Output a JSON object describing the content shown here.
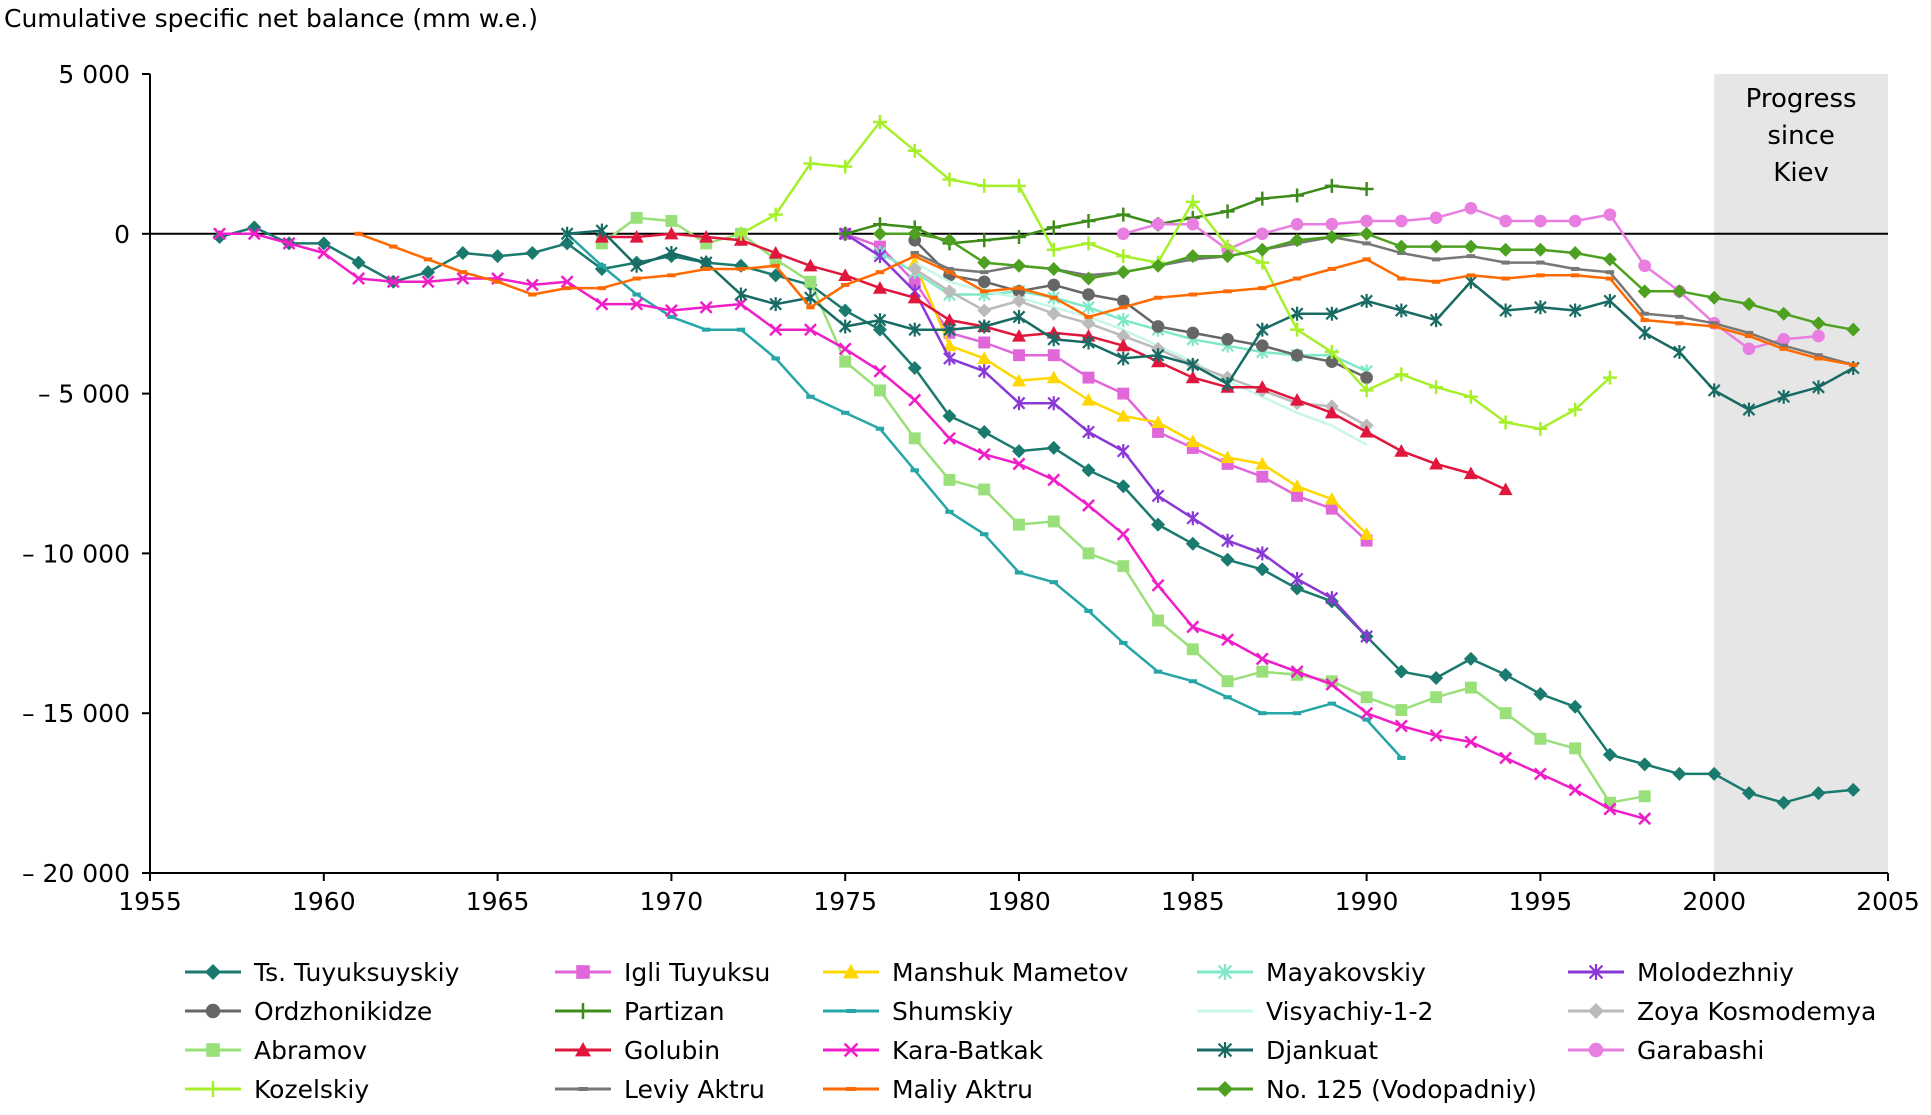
{
  "chart_data": {
    "type": "line",
    "title": "Cumulative specific net balance (mm w.e.)",
    "xlabel": "",
    "ylabel": "Cumulative specific net balance (mm w.e.)",
    "xlim": [
      1955,
      2005
    ],
    "ylim": [
      -20000,
      5000
    ],
    "x_ticks": [
      1955,
      1960,
      1965,
      1970,
      1975,
      1980,
      1985,
      1990,
      1995,
      2000,
      2005
    ],
    "x_tick_labels": [
      "1955",
      "1960",
      "1965",
      "1970",
      "1975",
      "1980",
      "1985",
      "1990",
      "1995",
      "2000",
      "2005"
    ],
    "y_ticks": [
      5000,
      0,
      -5000,
      -10000,
      -15000,
      -20000
    ],
    "y_tick_labels": [
      "5 000",
      "0",
      "– 5 000",
      "– 10 000",
      "– 15 000",
      "– 20 000"
    ],
    "grid": false,
    "legend_position": "bottom",
    "shaded_region": {
      "x": [
        2000,
        2005
      ],
      "color": "#e6e6e6",
      "label": "Progress since Kiev",
      "label_lines": [
        "Progress",
        "since",
        "Kiev"
      ]
    },
    "series": [
      {
        "name": "Ts. Tuyuksuyskiy",
        "color": "#1a7a6e",
        "marker": "diamond",
        "x": [
          1957,
          1958,
          1959,
          1960,
          1961,
          1962,
          1963,
          1964,
          1965,
          1966,
          1967,
          1968,
          1969,
          1970,
          1971,
          1972,
          1973,
          1974,
          1975,
          1976,
          1977,
          1978,
          1979,
          1980,
          1981,
          1982,
          1983,
          1984,
          1985,
          1986,
          1987,
          1988,
          1989,
          1990,
          1991,
          1992,
          1993,
          1994,
          1995,
          1996,
          1997,
          1998,
          1999,
          2000,
          2001,
          2002,
          2003,
          2004
        ],
        "y": [
          -100,
          200,
          -300,
          -300,
          -900,
          -1500,
          -1200,
          -600,
          -700,
          -600,
          -300,
          -1100,
          -900,
          -700,
          -900,
          -1000,
          -1300,
          -1600,
          -2400,
          -3000,
          -4200,
          -5700,
          -6200,
          -6800,
          -6700,
          -7400,
          -7900,
          -9100,
          -9700,
          -10200,
          -10500,
          -11100,
          -11500,
          -12600,
          -13700,
          -13900,
          -13300,
          -13800,
          -14400,
          -14800,
          -16300,
          -16600,
          -16900,
          -16900,
          -17500,
          -17800,
          -17500,
          -17400
        ]
      },
      {
        "name": "Igli Tuyuksu",
        "color": "#e066d9",
        "marker": "square",
        "x": [
          1975,
          1976,
          1977,
          1978,
          1979,
          1980,
          1981,
          1982,
          1983,
          1984,
          1985,
          1986,
          1987,
          1988,
          1989,
          1990
        ],
        "y": [
          0,
          -400,
          -1500,
          -3100,
          -3400,
          -3800,
          -3800,
          -4500,
          -5000,
          -6200,
          -6700,
          -7200,
          -7600,
          -8200,
          -8600,
          -9600
        ]
      },
      {
        "name": "Manshuk Mametov",
        "color": "#ffd700",
        "marker": "triangle",
        "x": [
          1977,
          1978,
          1979,
          1980,
          1981,
          1982,
          1983,
          1984,
          1985,
          1986,
          1987,
          1988,
          1989,
          1990
        ],
        "y": [
          -900,
          -3500,
          -3900,
          -4600,
          -4500,
          -5200,
          -5700,
          -5900,
          -6500,
          -7000,
          -7200,
          -7900,
          -8300,
          -9400
        ]
      },
      {
        "name": "Mayakovskiy",
        "color": "#7fe8c8",
        "marker": "star",
        "x": [
          1976,
          1977,
          1978,
          1979,
          1980,
          1981,
          1982,
          1983,
          1984,
          1985,
          1986,
          1987,
          1988,
          1989,
          1990
        ],
        "y": [
          -600,
          -1200,
          -1900,
          -1900,
          -1800,
          -2000,
          -2300,
          -2700,
          -3000,
          -3300,
          -3500,
          -3700,
          -3800,
          -3800,
          -4300
        ]
      },
      {
        "name": "Molodezhniy",
        "color": "#8a38d6",
        "marker": "star",
        "x": [
          1975,
          1976,
          1977,
          1978,
          1979,
          1980,
          1981,
          1982,
          1983,
          1984,
          1985,
          1986,
          1987,
          1988,
          1989,
          1990
        ],
        "y": [
          0,
          -700,
          -1800,
          -3900,
          -4300,
          -5300,
          -5300,
          -6200,
          -6800,
          -8200,
          -8900,
          -9600,
          -10000,
          -10800,
          -11400,
          -12600
        ]
      },
      {
        "name": "Ordzhonikidze",
        "color": "#666666",
        "marker": "circle",
        "x": [
          1977,
          1978,
          1979,
          1980,
          1981,
          1982,
          1983,
          1984,
          1985,
          1986,
          1987,
          1988,
          1989,
          1990
        ],
        "y": [
          -200,
          -1300,
          -1500,
          -1800,
          -1600,
          -1900,
          -2100,
          -2900,
          -3100,
          -3300,
          -3500,
          -3800,
          -4000,
          -4500
        ]
      },
      {
        "name": "Partizan",
        "color": "#3d8b1a",
        "marker": "plus",
        "x": [
          1975,
          1976,
          1977,
          1978,
          1979,
          1980,
          1981,
          1982,
          1983,
          1984,
          1985,
          1986,
          1987,
          1988,
          1989,
          1990
        ],
        "y": [
          0,
          300,
          200,
          -300,
          -200,
          -100,
          200,
          400,
          600,
          300,
          500,
          700,
          1100,
          1200,
          1500,
          1400
        ]
      },
      {
        "name": "Shumskiy",
        "color": "#26a6a6",
        "marker": "dash",
        "x": [
          1967,
          1968,
          1969,
          1970,
          1971,
          1972,
          1973,
          1974,
          1975,
          1976,
          1977,
          1978,
          1979,
          1980,
          1981,
          1982,
          1983,
          1984,
          1985,
          1986,
          1987,
          1988,
          1989,
          1990,
          1991
        ],
        "y": [
          0,
          -1000,
          -1900,
          -2600,
          -3000,
          -3000,
          -3900,
          -5100,
          -5600,
          -6100,
          -7400,
          -8700,
          -9400,
          -10600,
          -10900,
          -11800,
          -12800,
          -13700,
          -14000,
          -14500,
          -15000,
          -15000,
          -14700,
          -15200,
          -16400
        ]
      },
      {
        "name": "Visyachiy-1-2",
        "color": "#c6f7e8",
        "marker": "none",
        "x": [
          1977,
          1978,
          1979,
          1980,
          1981,
          1982,
          1983,
          1984,
          1985,
          1986,
          1987,
          1988,
          1989,
          1990
        ],
        "y": [
          -900,
          -1500,
          -1800,
          -2000,
          -2300,
          -2600,
          -3000,
          -3500,
          -4000,
          -4600,
          -5100,
          -5600,
          -6000,
          -6600
        ]
      },
      {
        "name": "Zoya Kosmodemya",
        "color": "#bbbbbb",
        "marker": "diamond",
        "x": [
          1977,
          1978,
          1979,
          1980,
          1981,
          1982,
          1983,
          1984,
          1985,
          1986,
          1987,
          1988,
          1989,
          1990
        ],
        "y": [
          -1100,
          -1800,
          -2400,
          -2100,
          -2500,
          -2800,
          -3200,
          -3600,
          -4100,
          -4500,
          -4900,
          -5300,
          -5400,
          -6000
        ]
      },
      {
        "name": "Abramov",
        "color": "#99e07a",
        "marker": "square",
        "x": [
          1968,
          1969,
          1970,
          1971,
          1972,
          1973,
          1974,
          1975,
          1976,
          1977,
          1978,
          1979,
          1980,
          1981,
          1982,
          1983,
          1984,
          1985,
          1986,
          1987,
          1988,
          1989,
          1990,
          1991,
          1992,
          1993,
          1994,
          1995,
          1996,
          1997,
          1998
        ],
        "y": [
          -300,
          500,
          400,
          -300,
          0,
          -800,
          -1500,
          -4000,
          -4900,
          -6400,
          -7700,
          -8000,
          -9100,
          -9000,
          -10000,
          -10400,
          -12100,
          -13000,
          -14000,
          -13700,
          -13800,
          -14000,
          -14500,
          -14900,
          -14500,
          -14200,
          -15000,
          -15800,
          -16100,
          -17800,
          -17600
        ]
      },
      {
        "name": "Golubin",
        "color": "#e0163c",
        "marker": "triangle",
        "x": [
          1968,
          1969,
          1970,
          1971,
          1972,
          1973,
          1974,
          1975,
          1976,
          1977,
          1978,
          1979,
          1980,
          1981,
          1982,
          1983,
          1984,
          1985,
          1986,
          1987,
          1988,
          1989,
          1990,
          1991,
          1992,
          1993,
          1994
        ],
        "y": [
          -100,
          -100,
          0,
          -100,
          -200,
          -600,
          -1000,
          -1300,
          -1700,
          -2000,
          -2700,
          -2900,
          -3200,
          -3100,
          -3200,
          -3500,
          -4000,
          -4500,
          -4800,
          -4800,
          -5200,
          -5600,
          -6200,
          -6800,
          -7200,
          -7500,
          -8000
        ]
      },
      {
        "name": "Kara-Batkak",
        "color": "#f01ec8",
        "marker": "cross",
        "x": [
          1957,
          1958,
          1959,
          1960,
          1961,
          1962,
          1963,
          1964,
          1965,
          1966,
          1967,
          1968,
          1969,
          1970,
          1971,
          1972,
          1973,
          1974,
          1975,
          1976,
          1977,
          1978,
          1979,
          1980,
          1981,
          1982,
          1983,
          1984,
          1985,
          1986,
          1987,
          1988,
          1989,
          1990,
          1991,
          1992,
          1993,
          1994,
          1995,
          1996,
          1997,
          1998
        ],
        "y": [
          0,
          0,
          -300,
          -600,
          -1400,
          -1500,
          -1500,
          -1400,
          -1400,
          -1600,
          -1500,
          -2200,
          -2200,
          -2400,
          -2300,
          -2200,
          -3000,
          -3000,
          -3600,
          -4300,
          -5200,
          -6400,
          -6900,
          -7200,
          -7700,
          -8500,
          -9400,
          -11000,
          -12300,
          -12700,
          -13300,
          -13700,
          -14100,
          -15000,
          -15400,
          -15700,
          -15900,
          -16400,
          -16900,
          -17400,
          -18000,
          -18300
        ]
      },
      {
        "name": "Djankuat",
        "color": "#176b63",
        "marker": "star",
        "x": [
          1967,
          1968,
          1969,
          1970,
          1971,
          1972,
          1973,
          1974,
          1975,
          1976,
          1977,
          1978,
          1979,
          1980,
          1981,
          1982,
          1983,
          1984,
          1985,
          1986,
          1987,
          1988,
          1989,
          1990,
          1991,
          1992,
          1993,
          1994,
          1995,
          1996,
          1997,
          1998,
          1999,
          2000,
          2001,
          2002,
          2003,
          2004
        ],
        "y": [
          0,
          100,
          -1000,
          -600,
          -900,
          -1900,
          -2200,
          -2000,
          -2900,
          -2700,
          -3000,
          -3000,
          -2900,
          -2600,
          -3300,
          -3400,
          -3900,
          -3800,
          -4100,
          -4700,
          -3000,
          -2500,
          -2500,
          -2100,
          -2400,
          -2700,
          -1500,
          -2400,
          -2300,
          -2400,
          -2100,
          -3100,
          -3700,
          -4900,
          -5500,
          -5100,
          -4800,
          -4200
        ]
      },
      {
        "name": "Garabashi",
        "color": "#e87ee0",
        "marker": "circle",
        "x": [
          1983,
          1984,
          1985,
          1986,
          1987,
          1988,
          1989,
          1990,
          1991,
          1992,
          1993,
          1994,
          1995,
          1996,
          1997,
          1998,
          1999,
          2000,
          2001,
          2002,
          2003
        ],
        "y": [
          0,
          300,
          300,
          -500,
          0,
          300,
          300,
          400,
          400,
          500,
          800,
          400,
          400,
          400,
          600,
          -1000,
          -1800,
          -2800,
          -3600,
          -3300,
          -3200
        ]
      },
      {
        "name": "Kozelskiy",
        "color": "#a6f02a",
        "marker": "plus",
        "x": [
          1972,
          1973,
          1974,
          1975,
          1976,
          1977,
          1978,
          1979,
          1980,
          1981,
          1982,
          1983,
          1984,
          1985,
          1986,
          1987,
          1988,
          1989,
          1990,
          1991,
          1992,
          1993,
          1994,
          1995,
          1996,
          1997
        ],
        "y": [
          0,
          600,
          2200,
          2100,
          3500,
          2600,
          1700,
          1500,
          1500,
          -500,
          -300,
          -700,
          -900,
          1000,
          -400,
          -900,
          -3000,
          -3700,
          -4900,
          -4400,
          -4800,
          -5100,
          -5900,
          -6100,
          -5500,
          -4500
        ]
      },
      {
        "name": "Leviy Aktru",
        "color": "#777777",
        "marker": "dash",
        "x": [
          1977,
          1978,
          1979,
          1980,
          1981,
          1982,
          1983,
          1984,
          1985,
          1986,
          1987,
          1988,
          1989,
          1990,
          1991,
          1992,
          1993,
          1994,
          1995,
          1996,
          1997,
          1998,
          1999,
          2000,
          2001,
          2002,
          2003,
          2004
        ],
        "y": [
          -600,
          -1100,
          -1200,
          -1000,
          -1100,
          -1300,
          -1200,
          -1000,
          -800,
          -700,
          -500,
          -300,
          -100,
          -300,
          -600,
          -800,
          -700,
          -900,
          -900,
          -1100,
          -1200,
          -2500,
          -2600,
          -2800,
          -3100,
          -3500,
          -3800,
          -4100
        ]
      },
      {
        "name": "Maliy Aktru",
        "color": "#ff6a00",
        "marker": "dash",
        "x": [
          1961,
          1962,
          1963,
          1964,
          1965,
          1966,
          1967,
          1968,
          1969,
          1970,
          1971,
          1972,
          1973,
          1974,
          1975,
          1976,
          1977,
          1978,
          1979,
          1980,
          1981,
          1982,
          1983,
          1984,
          1985,
          1986,
          1987,
          1988,
          1989,
          1990,
          1991,
          1992,
          1993,
          1994,
          1995,
          1996,
          1997,
          1998,
          1999,
          2000,
          2001,
          2002,
          2003,
          2004
        ],
        "y": [
          0,
          -400,
          -800,
          -1200,
          -1500,
          -1900,
          -1700,
          -1700,
          -1400,
          -1300,
          -1100,
          -1100,
          -1000,
          -2300,
          -1600,
          -1200,
          -700,
          -1200,
          -1800,
          -1700,
          -2000,
          -2600,
          -2300,
          -2000,
          -1900,
          -1800,
          -1700,
          -1400,
          -1100,
          -800,
          -1400,
          -1500,
          -1300,
          -1400,
          -1300,
          -1300,
          -1400,
          -2700,
          -2800,
          -2900,
          -3200,
          -3600,
          -3900,
          -4100
        ]
      },
      {
        "name": "No. 125 (Vodopadniy)",
        "color": "#4ea120",
        "marker": "diamond",
        "x": [
          1976,
          1977,
          1978,
          1979,
          1980,
          1981,
          1982,
          1983,
          1984,
          1985,
          1986,
          1987,
          1988,
          1989,
          1990,
          1991,
          1992,
          1993,
          1994,
          1995,
          1996,
          1997,
          1998,
          1999,
          2000,
          2001,
          2002,
          2003,
          2004
        ],
        "y": [
          0,
          0,
          -200,
          -900,
          -1000,
          -1100,
          -1400,
          -1200,
          -1000,
          -700,
          -700,
          -500,
          -200,
          -100,
          0,
          -400,
          -400,
          -400,
          -500,
          -500,
          -600,
          -800,
          -1800,
          -1800,
          -2000,
          -2200,
          -2500,
          -2800,
          -3000
        ]
      }
    ]
  }
}
